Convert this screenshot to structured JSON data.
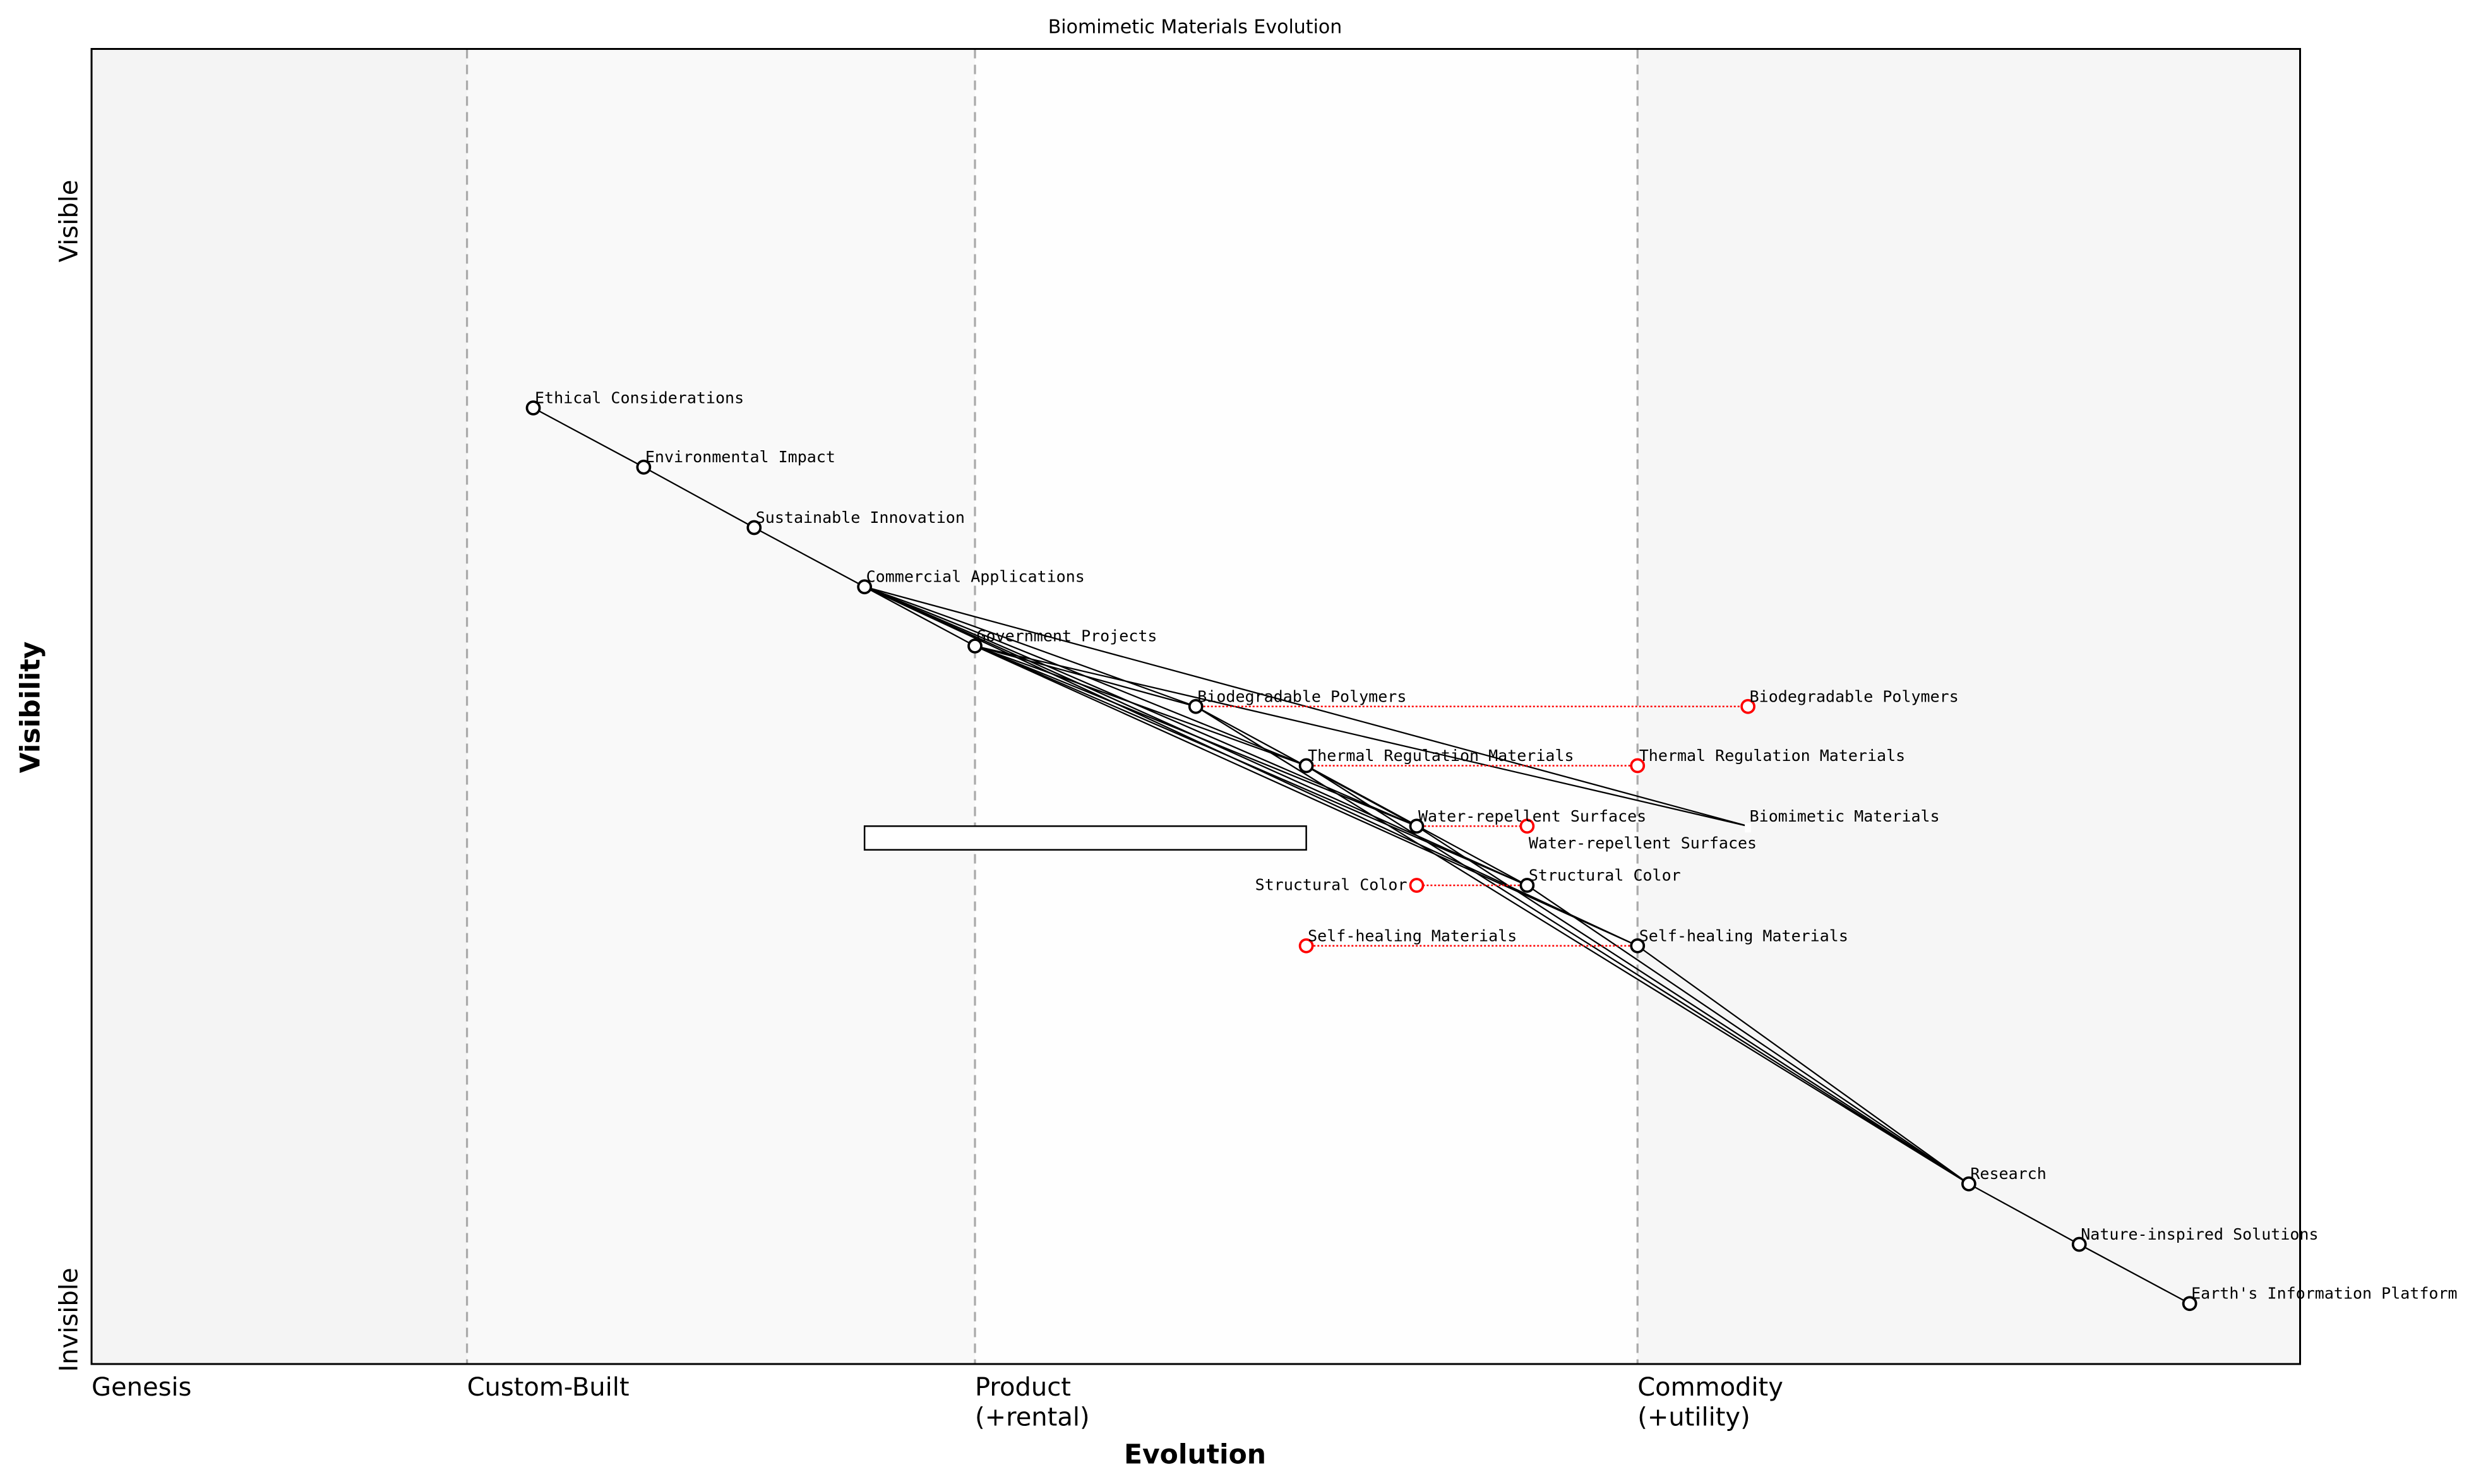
{
  "chart_data": {
    "type": "wardley-map",
    "title": "Biomimetic Materials Evolution",
    "xlabel": "Evolution",
    "ylabel": "Visibility",
    "y_ticks": [
      "Invisible",
      "Visible"
    ],
    "stages": [
      {
        "label": "Genesis",
        "start": 0.0,
        "end": 0.17,
        "color": "#f4f4f4"
      },
      {
        "label": "Custom-Built",
        "start": 0.17,
        "end": 0.4,
        "color": "#f9f9f9"
      },
      {
        "label": "Product\n(+rental)",
        "start": 0.4,
        "end": 0.7,
        "color": "#fefefe"
      },
      {
        "label": "Commodity\n(+utility)",
        "start": 0.7,
        "end": 1.0,
        "color": "#f6f6f6"
      }
    ],
    "components": [
      {
        "id": "ethical",
        "label": "Ethical Considerations",
        "evolution": 0.2,
        "visibility": 0.727
      },
      {
        "id": "env",
        "label": "Environmental Impact",
        "evolution": 0.25,
        "visibility": 0.682
      },
      {
        "id": "sus",
        "label": "Sustainable Innovation",
        "evolution": 0.3,
        "visibility": 0.636
      },
      {
        "id": "com",
        "label": "Commercial Applications",
        "evolution": 0.35,
        "visibility": 0.591
      },
      {
        "id": "gov",
        "label": "Government Projects",
        "evolution": 0.4,
        "visibility": 0.546
      },
      {
        "id": "bio",
        "label": "Biodegradable Polymers",
        "evolution": 0.5,
        "visibility": 0.5
      },
      {
        "id": "thermal",
        "label": "Thermal Regulation Materials",
        "evolution": 0.55,
        "visibility": 0.455
      },
      {
        "id": "water",
        "label": "Water-repellent Surfaces",
        "evolution": 0.6,
        "visibility": 0.409
      },
      {
        "id": "struct",
        "label": "Structural Color",
        "evolution": 0.65,
        "visibility": 0.364
      },
      {
        "id": "self",
        "label": "Self-healing Materials",
        "evolution": 0.7,
        "visibility": 0.318
      },
      {
        "id": "biomim",
        "label": "Biomimetic Materials",
        "evolution": 0.75,
        "visibility": 0.409,
        "marker": "none"
      },
      {
        "id": "research",
        "label": "Research",
        "evolution": 0.85,
        "visibility": 0.137
      },
      {
        "id": "nature",
        "label": "Nature-inspired Solutions",
        "evolution": 0.9,
        "visibility": 0.091
      },
      {
        "id": "earth",
        "label": "Earth's Information Platform",
        "evolution": 0.95,
        "visibility": 0.046
      }
    ],
    "links": [
      [
        "ethical",
        "env"
      ],
      [
        "env",
        "sus"
      ],
      [
        "sus",
        "com"
      ],
      [
        "com",
        "gov"
      ],
      [
        "com",
        "bio"
      ],
      [
        "com",
        "thermal"
      ],
      [
        "com",
        "water"
      ],
      [
        "com",
        "struct"
      ],
      [
        "com",
        "self"
      ],
      [
        "com",
        "biomim"
      ],
      [
        "gov",
        "bio"
      ],
      [
        "gov",
        "thermal"
      ],
      [
        "gov",
        "water"
      ],
      [
        "gov",
        "struct"
      ],
      [
        "gov",
        "self"
      ],
      [
        "gov",
        "biomim"
      ],
      [
        "bio",
        "water"
      ],
      [
        "thermal",
        "struct"
      ],
      [
        "bio",
        "research"
      ],
      [
        "thermal",
        "research"
      ],
      [
        "water",
        "research"
      ],
      [
        "struct",
        "research"
      ],
      [
        "self",
        "research"
      ],
      [
        "research",
        "nature"
      ],
      [
        "nature",
        "earth"
      ]
    ],
    "evolutions": [
      {
        "from": "bio",
        "label": "Biodegradable Polymers",
        "evolution": 0.75,
        "visibility": 0.5
      },
      {
        "from": "thermal",
        "label": "Thermal Regulation Materials",
        "evolution": 0.7,
        "visibility": 0.455
      },
      {
        "from": "water",
        "label": "Water-repellent Surfaces",
        "evolution": 0.65,
        "visibility": 0.409
      },
      {
        "from": "struct",
        "label": "Structural Color",
        "evolution": 0.6,
        "visibility": 0.364
      },
      {
        "from": "self",
        "label": "Self-healing Materials",
        "evolution": 0.55,
        "visibility": 0.318
      }
    ],
    "pipeline": {
      "evolution_start": 0.35,
      "evolution_end": 0.55,
      "visibility_top": 0.409,
      "visibility_bottom": 0.391
    },
    "accent_color": "#ff0000"
  }
}
